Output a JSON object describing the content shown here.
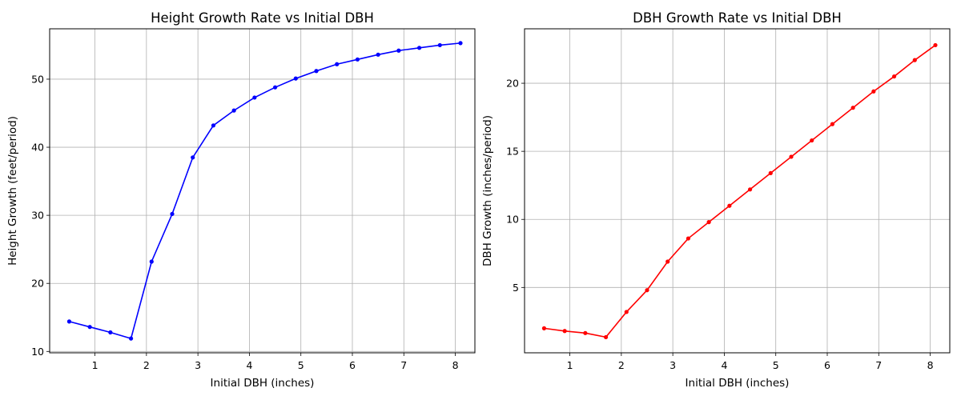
{
  "chart_data": [
    {
      "type": "line",
      "title": "Height Growth Rate vs Initial DBH",
      "xlabel": "Initial DBH (inches)",
      "ylabel": "Height Growth (feet/period)",
      "xlim": [
        0.12,
        8.38
      ],
      "ylim": [
        9.8,
        57.4
      ],
      "xticks": [
        1,
        2,
        3,
        4,
        5,
        6,
        7,
        8
      ],
      "yticks": [
        10,
        20,
        30,
        40,
        50
      ],
      "grid": true,
      "color": "#0000ff",
      "series": [
        {
          "x": [
            0.5,
            0.9,
            1.3,
            1.7,
            2.1,
            2.5,
            2.9,
            3.3,
            3.7,
            4.1,
            4.5,
            4.9,
            5.3,
            5.7,
            6.1,
            6.5,
            6.9,
            7.3,
            7.7,
            8.1
          ],
          "y": [
            14.4,
            13.6,
            12.8,
            11.9,
            23.2,
            30.2,
            38.5,
            43.2,
            45.4,
            47.3,
            48.8,
            50.1,
            51.2,
            52.2,
            52.9,
            53.6,
            54.2,
            54.6,
            55.0,
            55.3
          ]
        }
      ]
    },
    {
      "type": "line",
      "title": "DBH Growth Rate vs Initial DBH",
      "xlabel": "Initial DBH (inches)",
      "ylabel": "DBH Growth (inches/period)",
      "xlim": [
        0.12,
        8.38
      ],
      "ylim": [
        0.2,
        24.0
      ],
      "xticks": [
        1,
        2,
        3,
        4,
        5,
        6,
        7,
        8
      ],
      "yticks": [
        5,
        10,
        15,
        20
      ],
      "grid": true,
      "color": "#ff0000",
      "series": [
        {
          "x": [
            0.5,
            0.9,
            1.3,
            1.7,
            2.1,
            2.5,
            2.9,
            3.3,
            3.7,
            4.1,
            4.5,
            4.9,
            5.3,
            5.7,
            6.1,
            6.5,
            6.9,
            7.3,
            7.7,
            8.1
          ],
          "y": [
            2.0,
            1.8,
            1.65,
            1.35,
            3.2,
            4.8,
            6.9,
            8.6,
            9.8,
            11.0,
            12.2,
            13.4,
            14.6,
            15.8,
            17.0,
            18.2,
            19.4,
            20.5,
            21.7,
            22.8
          ]
        }
      ]
    }
  ]
}
